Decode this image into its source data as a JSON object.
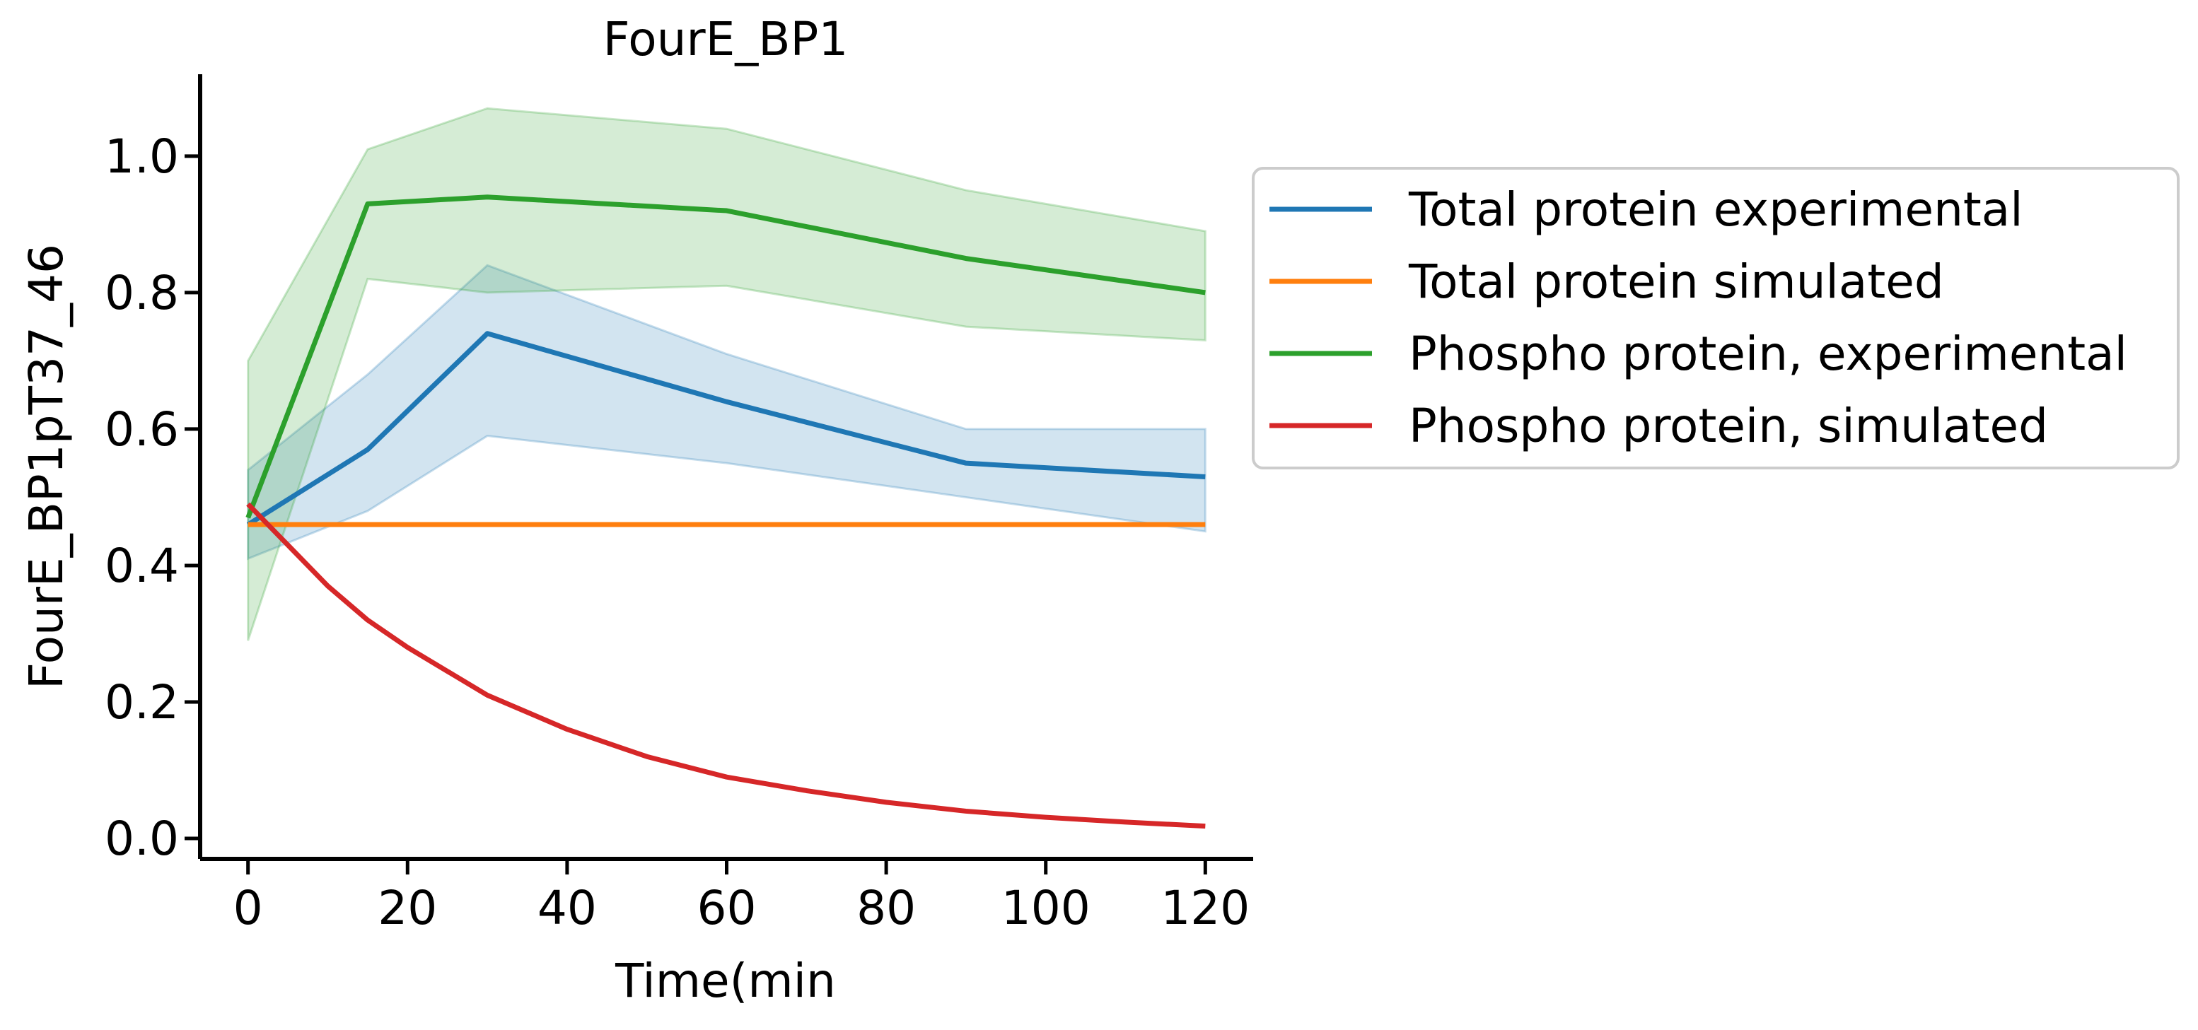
{
  "chart_data": {
    "type": "line",
    "title": "FourE_BP1",
    "xlabel": "Time(min",
    "ylabel": "FourE_BP1pT37_46",
    "xlim": [
      -6,
      126
    ],
    "ylim": [
      -0.03,
      1.12
    ],
    "xticks": [
      0,
      20,
      40,
      60,
      80,
      100,
      120
    ],
    "xtick_labels": [
      "0",
      "20",
      "40",
      "60",
      "80",
      "100",
      "120"
    ],
    "yticks": [
      0.0,
      0.2,
      0.4,
      0.6,
      0.8,
      1.0
    ],
    "ytick_labels": [
      "0.0",
      "0.2",
      "0.4",
      "0.6",
      "0.8",
      "1.0"
    ],
    "grid": false,
    "legend_position": "outside right",
    "series": [
      {
        "name": "Total protein experimental",
        "color": "#1f77b4",
        "x": [
          0,
          15,
          30,
          60,
          90,
          120
        ],
        "y": [
          0.46,
          0.57,
          0.74,
          0.64,
          0.55,
          0.53
        ],
        "band_lower": [
          0.41,
          0.48,
          0.59,
          0.55,
          0.5,
          0.45
        ],
        "band_upper": [
          0.54,
          0.68,
          0.84,
          0.71,
          0.6,
          0.6
        ]
      },
      {
        "name": "Total protein simulated",
        "color": "#ff7f0e",
        "x": [
          0,
          120
        ],
        "y": [
          0.46,
          0.46
        ]
      },
      {
        "name": "Phospho protein, experimental",
        "color": "#2ca02c",
        "x": [
          0,
          15,
          30,
          60,
          90,
          120
        ],
        "y": [
          0.47,
          0.93,
          0.94,
          0.92,
          0.85,
          0.8
        ],
        "band_lower": [
          0.29,
          0.82,
          0.8,
          0.81,
          0.75,
          0.73
        ],
        "band_upper": [
          0.7,
          1.01,
          1.07,
          1.04,
          0.95,
          0.89
        ]
      },
      {
        "name": "Phospho protein, simulated",
        "color": "#d62728",
        "x": [
          0,
          5,
          10,
          15,
          20,
          25,
          30,
          40,
          50,
          60,
          70,
          80,
          90,
          100,
          110,
          120
        ],
        "y": [
          0.49,
          0.43,
          0.37,
          0.32,
          0.28,
          0.245,
          0.21,
          0.16,
          0.12,
          0.09,
          0.07,
          0.053,
          0.04,
          0.031,
          0.024,
          0.018
        ]
      }
    ]
  }
}
